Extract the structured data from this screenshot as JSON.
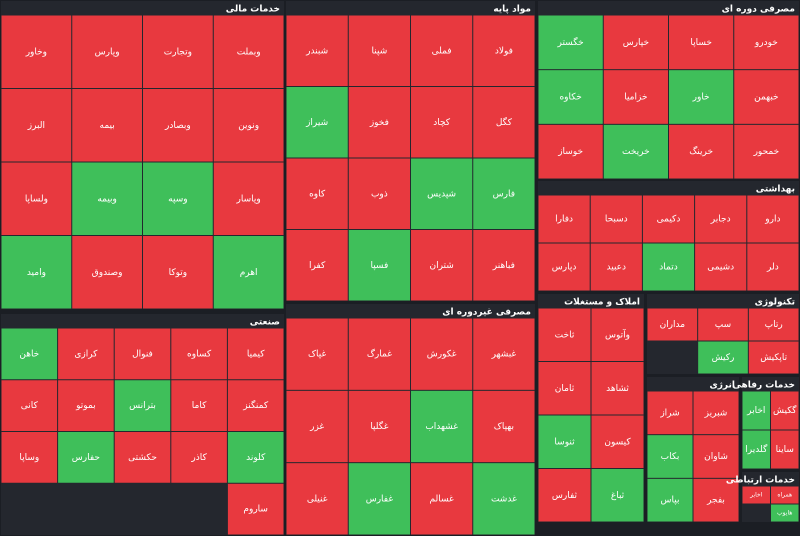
{
  "sectors": [
    {
      "name": "خدمات مالی",
      "tiles": [
        {
          "label": "وبملت",
          "trend": "down"
        },
        {
          "label": "وتجارت",
          "trend": "down"
        },
        {
          "label": "وپارس",
          "trend": "down"
        },
        {
          "label": "وخاور",
          "trend": "down"
        },
        {
          "label": "ونوین",
          "trend": "down"
        },
        {
          "label": "وبصادر",
          "trend": "down"
        },
        {
          "label": "بیمه",
          "trend": "down"
        },
        {
          "label": "البرز",
          "trend": "down"
        },
        {
          "label": "وپاسار",
          "trend": "down"
        },
        {
          "label": "وسپه",
          "trend": "up"
        },
        {
          "label": "وبیمه",
          "trend": "up"
        },
        {
          "label": "ولساپا",
          "trend": "down"
        },
        {
          "label": "اهرم",
          "trend": "up"
        },
        {
          "label": "وتوکا",
          "trend": "down"
        },
        {
          "label": "وصندوق",
          "trend": "down"
        },
        {
          "label": "وامید",
          "trend": "up"
        }
      ]
    },
    {
      "name": "مواد پایه",
      "tiles": [
        {
          "label": "فولاد",
          "trend": "down"
        },
        {
          "label": "فملی",
          "trend": "down"
        },
        {
          "label": "شپنا",
          "trend": "down"
        },
        {
          "label": "شبندر",
          "trend": "down"
        },
        {
          "label": "کگل",
          "trend": "down"
        },
        {
          "label": "کچاد",
          "trend": "down"
        },
        {
          "label": "فخوز",
          "trend": "down"
        },
        {
          "label": "شیراز",
          "trend": "up"
        },
        {
          "label": "فارس",
          "trend": "up"
        },
        {
          "label": "شپدیس",
          "trend": "up"
        },
        {
          "label": "ذوب",
          "trend": "down"
        },
        {
          "label": "کاوه",
          "trend": "down"
        },
        {
          "label": "فباهنر",
          "trend": "down"
        },
        {
          "label": "شتران",
          "trend": "down"
        },
        {
          "label": "فسپا",
          "trend": "up"
        },
        {
          "label": "کفرا",
          "trend": "down"
        }
      ]
    },
    {
      "name": "مصرفی دوره ای",
      "tiles": [
        {
          "label": "خودرو",
          "trend": "down"
        },
        {
          "label": "خساپا",
          "trend": "down"
        },
        {
          "label": "خپارس",
          "trend": "down"
        },
        {
          "label": "خگستر",
          "trend": "up"
        },
        {
          "label": "خبهمن",
          "trend": "down"
        },
        {
          "label": "خاور",
          "trend": "up"
        },
        {
          "label": "خزامیا",
          "trend": "down"
        },
        {
          "label": "خکاوه",
          "trend": "up"
        },
        {
          "label": "خمحور",
          "trend": "down"
        },
        {
          "label": "خرینگ",
          "trend": "down"
        },
        {
          "label": "خریخت",
          "trend": "up"
        },
        {
          "label": "خوساز",
          "trend": "down"
        }
      ]
    },
    {
      "name": "بهداشتی",
      "tiles": [
        {
          "label": "دارو",
          "trend": "down"
        },
        {
          "label": "دجابر",
          "trend": "down"
        },
        {
          "label": "دکیمی",
          "trend": "down"
        },
        {
          "label": "دسبحا",
          "trend": "down"
        },
        {
          "label": "دفارا",
          "trend": "down"
        },
        {
          "label": "دلر",
          "trend": "down"
        },
        {
          "label": "دشیمی",
          "trend": "down"
        },
        {
          "label": "دتماد",
          "trend": "up"
        },
        {
          "label": "دعبید",
          "trend": "down"
        },
        {
          "label": "دپارس",
          "trend": "down"
        }
      ]
    },
    {
      "name": "صنعتی",
      "tiles": [
        {
          "label": "کیمیا",
          "trend": "down"
        },
        {
          "label": "کساوه",
          "trend": "down"
        },
        {
          "label": "فنوال",
          "trend": "down"
        },
        {
          "label": "کرازی",
          "trend": "down"
        },
        {
          "label": "خاهن",
          "trend": "up"
        },
        {
          "label": "کمنگنز",
          "trend": "down"
        },
        {
          "label": "کاما",
          "trend": "down"
        },
        {
          "label": "بترانس",
          "trend": "up"
        },
        {
          "label": "بموتو",
          "trend": "down"
        },
        {
          "label": "کانی",
          "trend": "down"
        },
        {
          "label": "کلوند",
          "trend": "up"
        },
        {
          "label": "کاذر",
          "trend": "down"
        },
        {
          "label": "حکشتی",
          "trend": "down"
        },
        {
          "label": "حفارس",
          "trend": "up"
        },
        {
          "label": "وساپا",
          "trend": "down"
        },
        {
          "label": "ساروم",
          "trend": "down"
        }
      ]
    },
    {
      "name": "مصرفی غیردوره ای",
      "tiles": [
        {
          "label": "غبشهر",
          "trend": "down"
        },
        {
          "label": "غکورش",
          "trend": "down"
        },
        {
          "label": "غمارگ",
          "trend": "down"
        },
        {
          "label": "غپاک",
          "trend": "down"
        },
        {
          "label": "بهپاک",
          "trend": "down"
        },
        {
          "label": "غشهداب",
          "trend": "up"
        },
        {
          "label": "غگلپا",
          "trend": "down"
        },
        {
          "label": "غزر",
          "trend": "down"
        },
        {
          "label": "غدشت",
          "trend": "up"
        },
        {
          "label": "غسالم",
          "trend": "down"
        },
        {
          "label": "غفارس",
          "trend": "up"
        },
        {
          "label": "غنیلی",
          "trend": "down"
        }
      ]
    },
    {
      "name": "املاک و مستغلات",
      "tiles": [
        {
          "label": "وآتوس",
          "trend": "down"
        },
        {
          "label": "ثاخت",
          "trend": "down"
        },
        {
          "label": "ثشاهد",
          "trend": "down"
        },
        {
          "label": "ثامان",
          "trend": "down"
        },
        {
          "label": "کیسون",
          "trend": "down"
        },
        {
          "label": "ثنوسا",
          "trend": "up"
        },
        {
          "label": "ثباغ",
          "trend": "up"
        },
        {
          "label": "ثفارس",
          "trend": "down"
        }
      ]
    },
    {
      "name": "تکنولوژی",
      "tiles": [
        {
          "label": "رتاپ",
          "trend": "down"
        },
        {
          "label": "سپ",
          "trend": "down"
        },
        {
          "label": "مداران",
          "trend": "down"
        },
        {
          "label": "تاپکیش",
          "trend": "down"
        },
        {
          "label": "رکیش",
          "trend": "up"
        }
      ]
    },
    {
      "name": "انرژی",
      "tiles": [
        {
          "label": "شبریز",
          "trend": "down"
        },
        {
          "label": "شراز",
          "trend": "down"
        },
        {
          "label": "شاوان",
          "trend": "down"
        },
        {
          "label": "بکاب",
          "trend": "up"
        },
        {
          "label": "بفجر",
          "trend": "down"
        },
        {
          "label": "بپاس",
          "trend": "up"
        }
      ]
    },
    {
      "name": "خدمات رفاهی",
      "tiles": [
        {
          "label": "گکیش",
          "trend": "down"
        },
        {
          "label": "اخابر",
          "trend": "up"
        },
        {
          "label": "ساینا",
          "trend": "down"
        },
        {
          "label": "گلدیرا",
          "trend": "up"
        }
      ]
    },
    {
      "name": "خدمات ارتباطی",
      "tiles": [
        {
          "label": "همراه",
          "trend": "down"
        },
        {
          "label": "اخابر",
          "trend": "down"
        },
        {
          "label": "هایوب",
          "trend": "up"
        }
      ]
    }
  ],
  "colors": {
    "up": "#3fbf5a",
    "down": "#e8393f"
  }
}
